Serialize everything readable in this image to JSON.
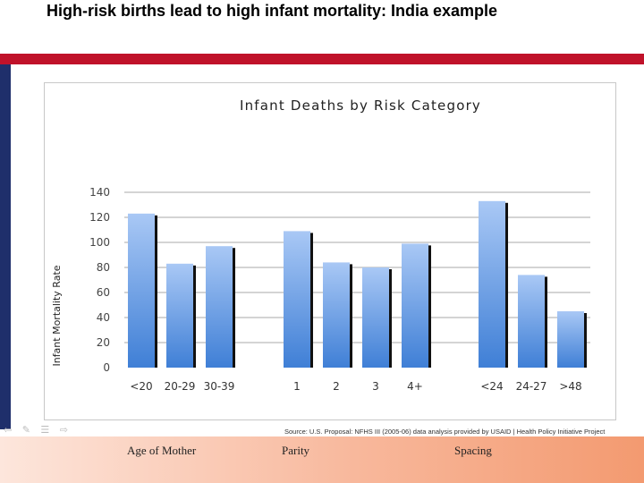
{
  "slide": {
    "title": "High-risk births lead to high infant mortality: India example",
    "source": "Source: U.S. Proposal: NFHS III (2005-06) data analysis provided by USAID | Health Policy Initiative Project",
    "groups": [
      "Age of Mother",
      "Parity",
      "Spacing"
    ]
  },
  "colors": {
    "accent_red": "#c0122a",
    "accent_navy": "#1f2f6b",
    "bar_top": "#a9c8f5",
    "bar_bottom": "#3f7fd6"
  },
  "chart_data": {
    "type": "bar",
    "title": "Infant Deaths by Risk Category",
    "xlabel": "",
    "ylabel": "Infant Mortality Rate",
    "ylim": [
      0,
      140
    ],
    "yticks": [
      0,
      20,
      40,
      60,
      80,
      100,
      120,
      140
    ],
    "grid": true,
    "legend": "none",
    "categories": [
      "<20",
      "20-29",
      "30-39",
      "1",
      "2",
      "3",
      "4+",
      "<24",
      "24-27",
      ">48"
    ],
    "values": [
      123,
      83,
      97,
      109,
      84,
      80,
      99,
      133,
      74,
      45
    ]
  }
}
